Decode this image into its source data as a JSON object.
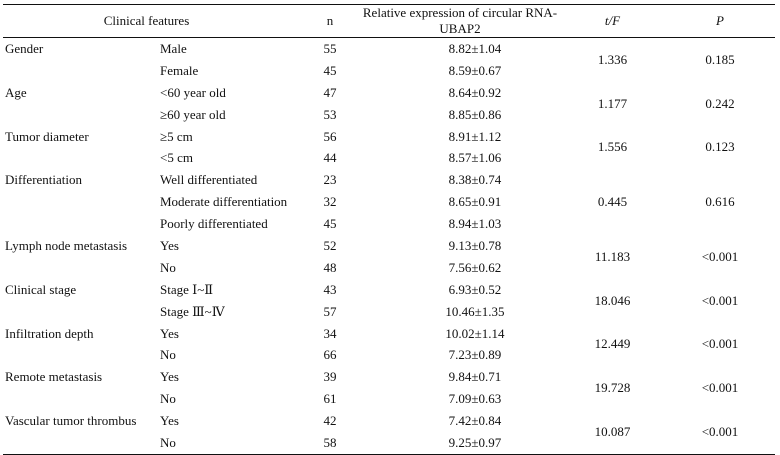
{
  "header": {
    "clinical_features": "Clinical features",
    "n": "n",
    "expression": "Relative expression of circular RNA-UBAP2",
    "tf": "t/F",
    "p": "P"
  },
  "rows": [
    {
      "feature": "Gender",
      "t_f": "1.336",
      "p": "0.185",
      "groups": [
        {
          "label": "Male",
          "n": "55",
          "expr": "8.82±1.04"
        },
        {
          "label": "Female",
          "n": "45",
          "expr": "8.59±0.67"
        }
      ]
    },
    {
      "feature": "Age",
      "t_f": "1.177",
      "p": "0.242",
      "groups": [
        {
          "label": "<60 year old",
          "n": "47",
          "expr": "8.64±0.92"
        },
        {
          "label": "≥60 year old",
          "n": "53",
          "expr": "8.85±0.86"
        }
      ]
    },
    {
      "feature": "Tumor diameter",
      "t_f": "1.556",
      "p": "0.123",
      "groups": [
        {
          "label": "≥5 cm",
          "n": "56",
          "expr": "8.91±1.12"
        },
        {
          "label": "<5 cm",
          "n": "44",
          "expr": "8.57±1.06"
        }
      ]
    },
    {
      "feature": "Differentiation",
      "t_f": "0.445",
      "p": "0.616",
      "groups": [
        {
          "label": "Well differentiated",
          "n": "23",
          "expr": "8.38±0.74"
        },
        {
          "label": "Moderate differentiation",
          "n": "32",
          "expr": "8.65±0.91"
        },
        {
          "label": "Poorly differentiated",
          "n": "45",
          "expr": "8.94±1.03"
        }
      ]
    },
    {
      "feature": "Lymph node metastasis",
      "t_f": "11.183",
      "p": "<0.001",
      "groups": [
        {
          "label": "Yes",
          "n": "52",
          "expr": "9.13±0.78"
        },
        {
          "label": "No",
          "n": "48",
          "expr": "7.56±0.62"
        }
      ]
    },
    {
      "feature": "Clinical stage",
      "t_f": "18.046",
      "p": "<0.001",
      "groups": [
        {
          "label": "Stage Ⅰ~Ⅱ",
          "n": "43",
          "expr": "6.93±0.52"
        },
        {
          "label": "Stage Ⅲ~Ⅳ",
          "n": "57",
          "expr": "10.46±1.35"
        }
      ]
    },
    {
      "feature": "Infiltration depth",
      "t_f": "12.449",
      "p": "<0.001",
      "groups": [
        {
          "label": "Yes",
          "n": "34",
          "expr": "10.02±1.14"
        },
        {
          "label": "No",
          "n": "66",
          "expr": "7.23±0.89"
        }
      ]
    },
    {
      "feature": "Remote metastasis",
      "t_f": "19.728",
      "p": "<0.001",
      "groups": [
        {
          "label": "Yes",
          "n": "39",
          "expr": "9.84±0.71"
        },
        {
          "label": "No",
          "n": "61",
          "expr": "7.09±0.63"
        }
      ]
    },
    {
      "feature": "Vascular tumor thrombus",
      "t_f": "10.087",
      "p": "<0.001",
      "groups": [
        {
          "label": "Yes",
          "n": "42",
          "expr": "7.42±0.84"
        },
        {
          "label": "No",
          "n": "58",
          "expr": "9.25±0.97"
        }
      ]
    }
  ]
}
